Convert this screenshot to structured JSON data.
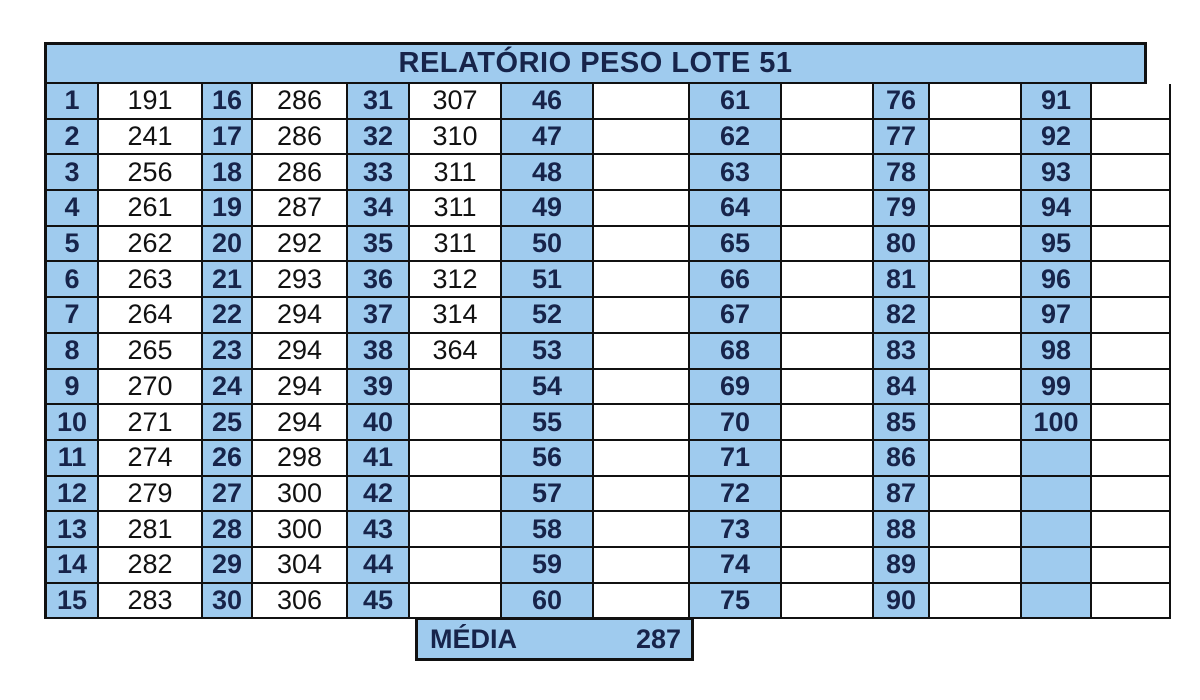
{
  "title": "RELATÓRIO PESO LOTE 51",
  "columns": [
    {
      "numbers": [
        "1",
        "2",
        "3",
        "4",
        "5",
        "6",
        "7",
        "8",
        "9",
        "10",
        "11",
        "12",
        "13",
        "14",
        "15"
      ],
      "values": [
        "191",
        "241",
        "256",
        "261",
        "262",
        "263",
        "264",
        "265",
        "270",
        "271",
        "274",
        "279",
        "281",
        "282",
        "283"
      ]
    },
    {
      "numbers": [
        "16",
        "17",
        "18",
        "19",
        "20",
        "21",
        "22",
        "23",
        "24",
        "25",
        "26",
        "27",
        "28",
        "29",
        "30"
      ],
      "values": [
        "286",
        "286",
        "286",
        "287",
        "292",
        "293",
        "294",
        "294",
        "294",
        "294",
        "298",
        "300",
        "300",
        "304",
        "306"
      ]
    },
    {
      "numbers": [
        "31",
        "32",
        "33",
        "34",
        "35",
        "36",
        "37",
        "38",
        "39",
        "40",
        "41",
        "42",
        "43",
        "44",
        "45"
      ],
      "values": [
        "307",
        "310",
        "311",
        "311",
        "311",
        "312",
        "314",
        "364",
        "",
        "",
        "",
        "",
        "",
        "",
        ""
      ]
    },
    {
      "numbers": [
        "46",
        "47",
        "48",
        "49",
        "50",
        "51",
        "52",
        "53",
        "54",
        "55",
        "56",
        "57",
        "58",
        "59",
        "60"
      ],
      "values": [
        "",
        "",
        "",
        "",
        "",
        "",
        "",
        "",
        "",
        "",
        "",
        "",
        "",
        "",
        ""
      ]
    },
    {
      "numbers": [
        "61",
        "62",
        "63",
        "64",
        "65",
        "66",
        "67",
        "68",
        "69",
        "70",
        "71",
        "72",
        "73",
        "74",
        "75"
      ],
      "values": [
        "",
        "",
        "",
        "",
        "",
        "",
        "",
        "",
        "",
        "",
        "",
        "",
        "",
        "",
        ""
      ]
    },
    {
      "numbers": [
        "76",
        "77",
        "78",
        "79",
        "80",
        "81",
        "82",
        "83",
        "84",
        "85",
        "86",
        "87",
        "88",
        "89",
        "90"
      ],
      "values": [
        "",
        "",
        "",
        "",
        "",
        "",
        "",
        "",
        "",
        "",
        "",
        "",
        "",
        "",
        ""
      ]
    },
    {
      "numbers": [
        "91",
        "92",
        "93",
        "94",
        "95",
        "96",
        "97",
        "98",
        "99",
        "100",
        "",
        "",
        "",
        "",
        ""
      ],
      "values": [
        "",
        "",
        "",
        "",
        "",
        "",
        "",
        "",
        "",
        "",
        "",
        "",
        "",
        "",
        ""
      ]
    }
  ],
  "summary": {
    "label": "MÉDIA",
    "value": "287"
  },
  "colors": {
    "header_bg": "#9fcbee",
    "header_text": "#17244a",
    "grid_lines": "#111111"
  }
}
